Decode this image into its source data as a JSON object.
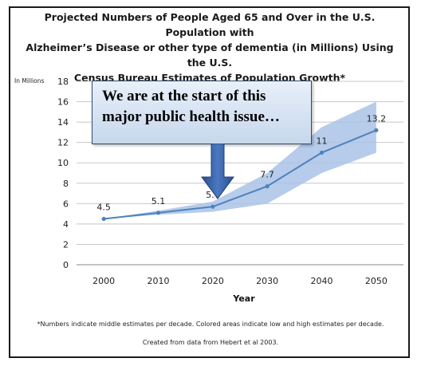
{
  "title_lines": [
    "Projected Numbers of People Aged 65 and Over in the U.S. Population with",
    "Alzheimer’s Disease or other type of dementia (in Millions) Using the U.S.",
    "Census Bureau Estimates of Population Growth*"
  ],
  "callout_lines": [
    "We are at the start of this",
    "major public health issue…"
  ],
  "footnote": "*Numbers indicate middle estimates per decade. Colored areas indicate low and high estimates per decade.",
  "source": "Created from data from Hebert et al 2003.",
  "chart_data": {
    "type": "line",
    "title": "Projected Numbers of People Aged 65 and Over in the U.S. Population with Alzheimer’s Disease or other type of dementia (in Millions) Using the U.S. Census Bureau Estimates of Population Growth*",
    "xlabel": "Year",
    "ylabel": "In Millions",
    "categories": [
      "2000",
      "2010",
      "2020",
      "2030",
      "2040",
      "2050"
    ],
    "y_ticks": [
      "0",
      "2",
      "4",
      "6",
      "8",
      "10",
      "12",
      "14",
      "16",
      "18"
    ],
    "ylim": [
      0,
      18
    ],
    "series": [
      {
        "values": [
          4.5,
          5.1,
          5.7,
          7.7,
          11,
          13.2
        ],
        "labels": [
          "4.5",
          "5.1",
          "5.7",
          "7.7",
          "11",
          "13.2"
        ],
        "low": [
          4.5,
          4.9,
          5.2,
          6.0,
          9.0,
          11.0
        ],
        "high": [
          4.5,
          5.3,
          6.2,
          9.0,
          13.5,
          16.0
        ]
      }
    ],
    "grid": true,
    "line_color": "#4f81bd",
    "band_color": "#a9c3e6"
  }
}
